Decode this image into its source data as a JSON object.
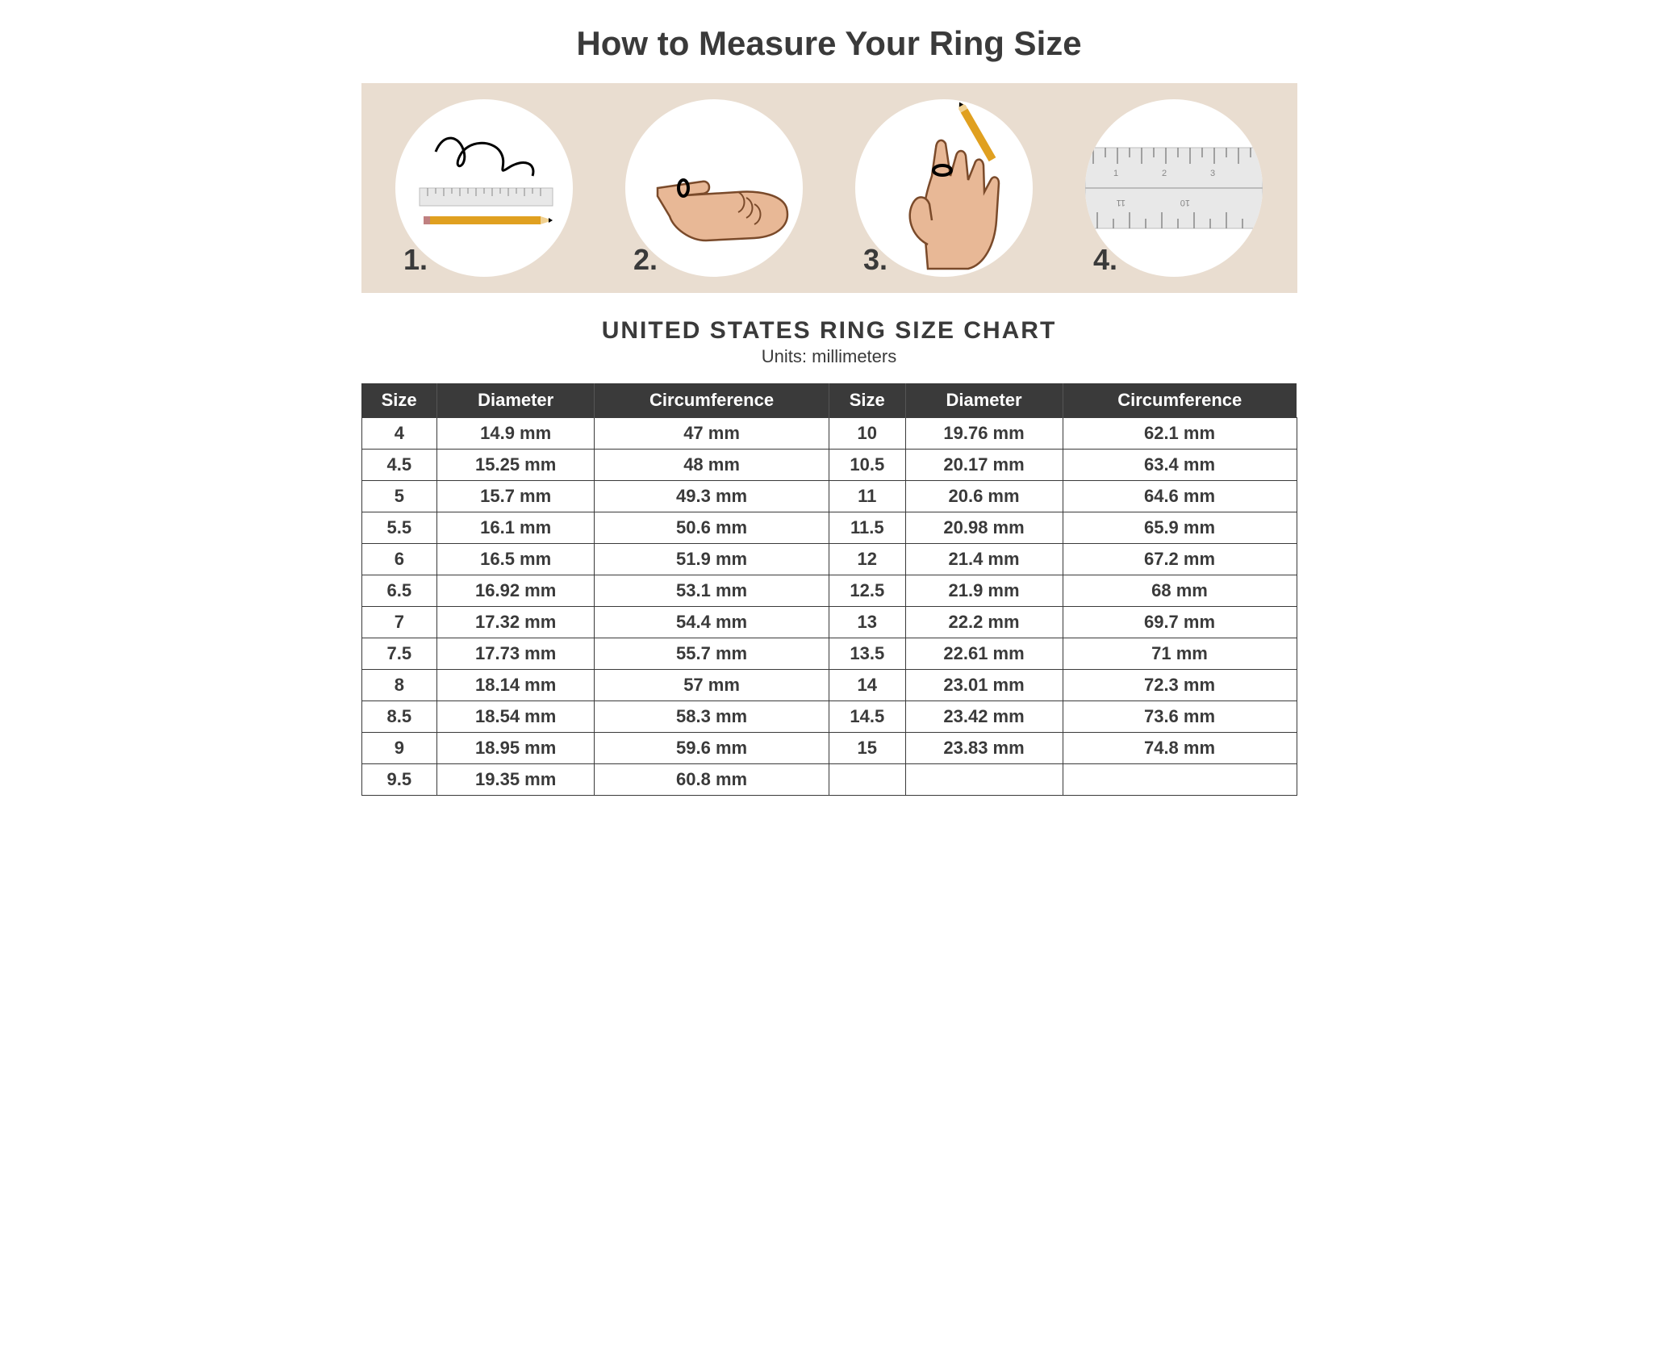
{
  "title": "How to Measure Your Ring Size",
  "steps_panel": {
    "background_color": "#e9ddd0",
    "circle_color": "#ffffff",
    "steps": [
      {
        "num": "1.",
        "icon": "string-ruler-pencil"
      },
      {
        "num": "2.",
        "icon": "hand-pointing-ring"
      },
      {
        "num": "3.",
        "icon": "hand-mark-pencil"
      },
      {
        "num": "4.",
        "icon": "ruler-closeup"
      }
    ]
  },
  "chart": {
    "title": "UNITED STATES RING SIZE CHART",
    "subtitle": "Units: millimeters",
    "header_bg": "#3a3a3a",
    "header_fg": "#ffffff",
    "border_color": "#3a3a3a",
    "columns": [
      "Size",
      "Diameter",
      "Circumference",
      "Size",
      "Diameter",
      "Circumference"
    ],
    "rows": [
      [
        "4",
        "14.9 mm",
        "47 mm",
        "10",
        "19.76 mm",
        "62.1 mm"
      ],
      [
        "4.5",
        "15.25 mm",
        "48 mm",
        "10.5",
        "20.17 mm",
        "63.4 mm"
      ],
      [
        "5",
        "15.7 mm",
        "49.3 mm",
        "11",
        "20.6 mm",
        "64.6 mm"
      ],
      [
        "5.5",
        "16.1 mm",
        "50.6 mm",
        "11.5",
        "20.98 mm",
        "65.9 mm"
      ],
      [
        "6",
        "16.5 mm",
        "51.9 mm",
        "12",
        "21.4 mm",
        "67.2 mm"
      ],
      [
        "6.5",
        "16.92 mm",
        "53.1 mm",
        "12.5",
        "21.9 mm",
        "68 mm"
      ],
      [
        "7",
        "17.32 mm",
        "54.4 mm",
        "13",
        "22.2 mm",
        "69.7 mm"
      ],
      [
        "7.5",
        "17.73 mm",
        "55.7 mm",
        "13.5",
        "22.61 mm",
        "71 mm"
      ],
      [
        "8",
        "18.14 mm",
        "57 mm",
        "14",
        "23.01 mm",
        "72.3 mm"
      ],
      [
        "8.5",
        "18.54 mm",
        "58.3 mm",
        "14.5",
        "23.42 mm",
        "73.6 mm"
      ],
      [
        "9",
        "18.95 mm",
        "59.6 mm",
        "15",
        "23.83 mm",
        "74.8 mm"
      ],
      [
        "9.5",
        "19.35 mm",
        "60.8 mm",
        "",
        "",
        ""
      ]
    ]
  },
  "colors": {
    "text": "#3a3a3a",
    "pencil": "#e0a020",
    "pencil_tip": "#000000",
    "skin": "#e8b896",
    "skin_shadow": "#d19a75",
    "ruler": "#e8e8e8",
    "ruler_edge": "#bcbcbc"
  }
}
